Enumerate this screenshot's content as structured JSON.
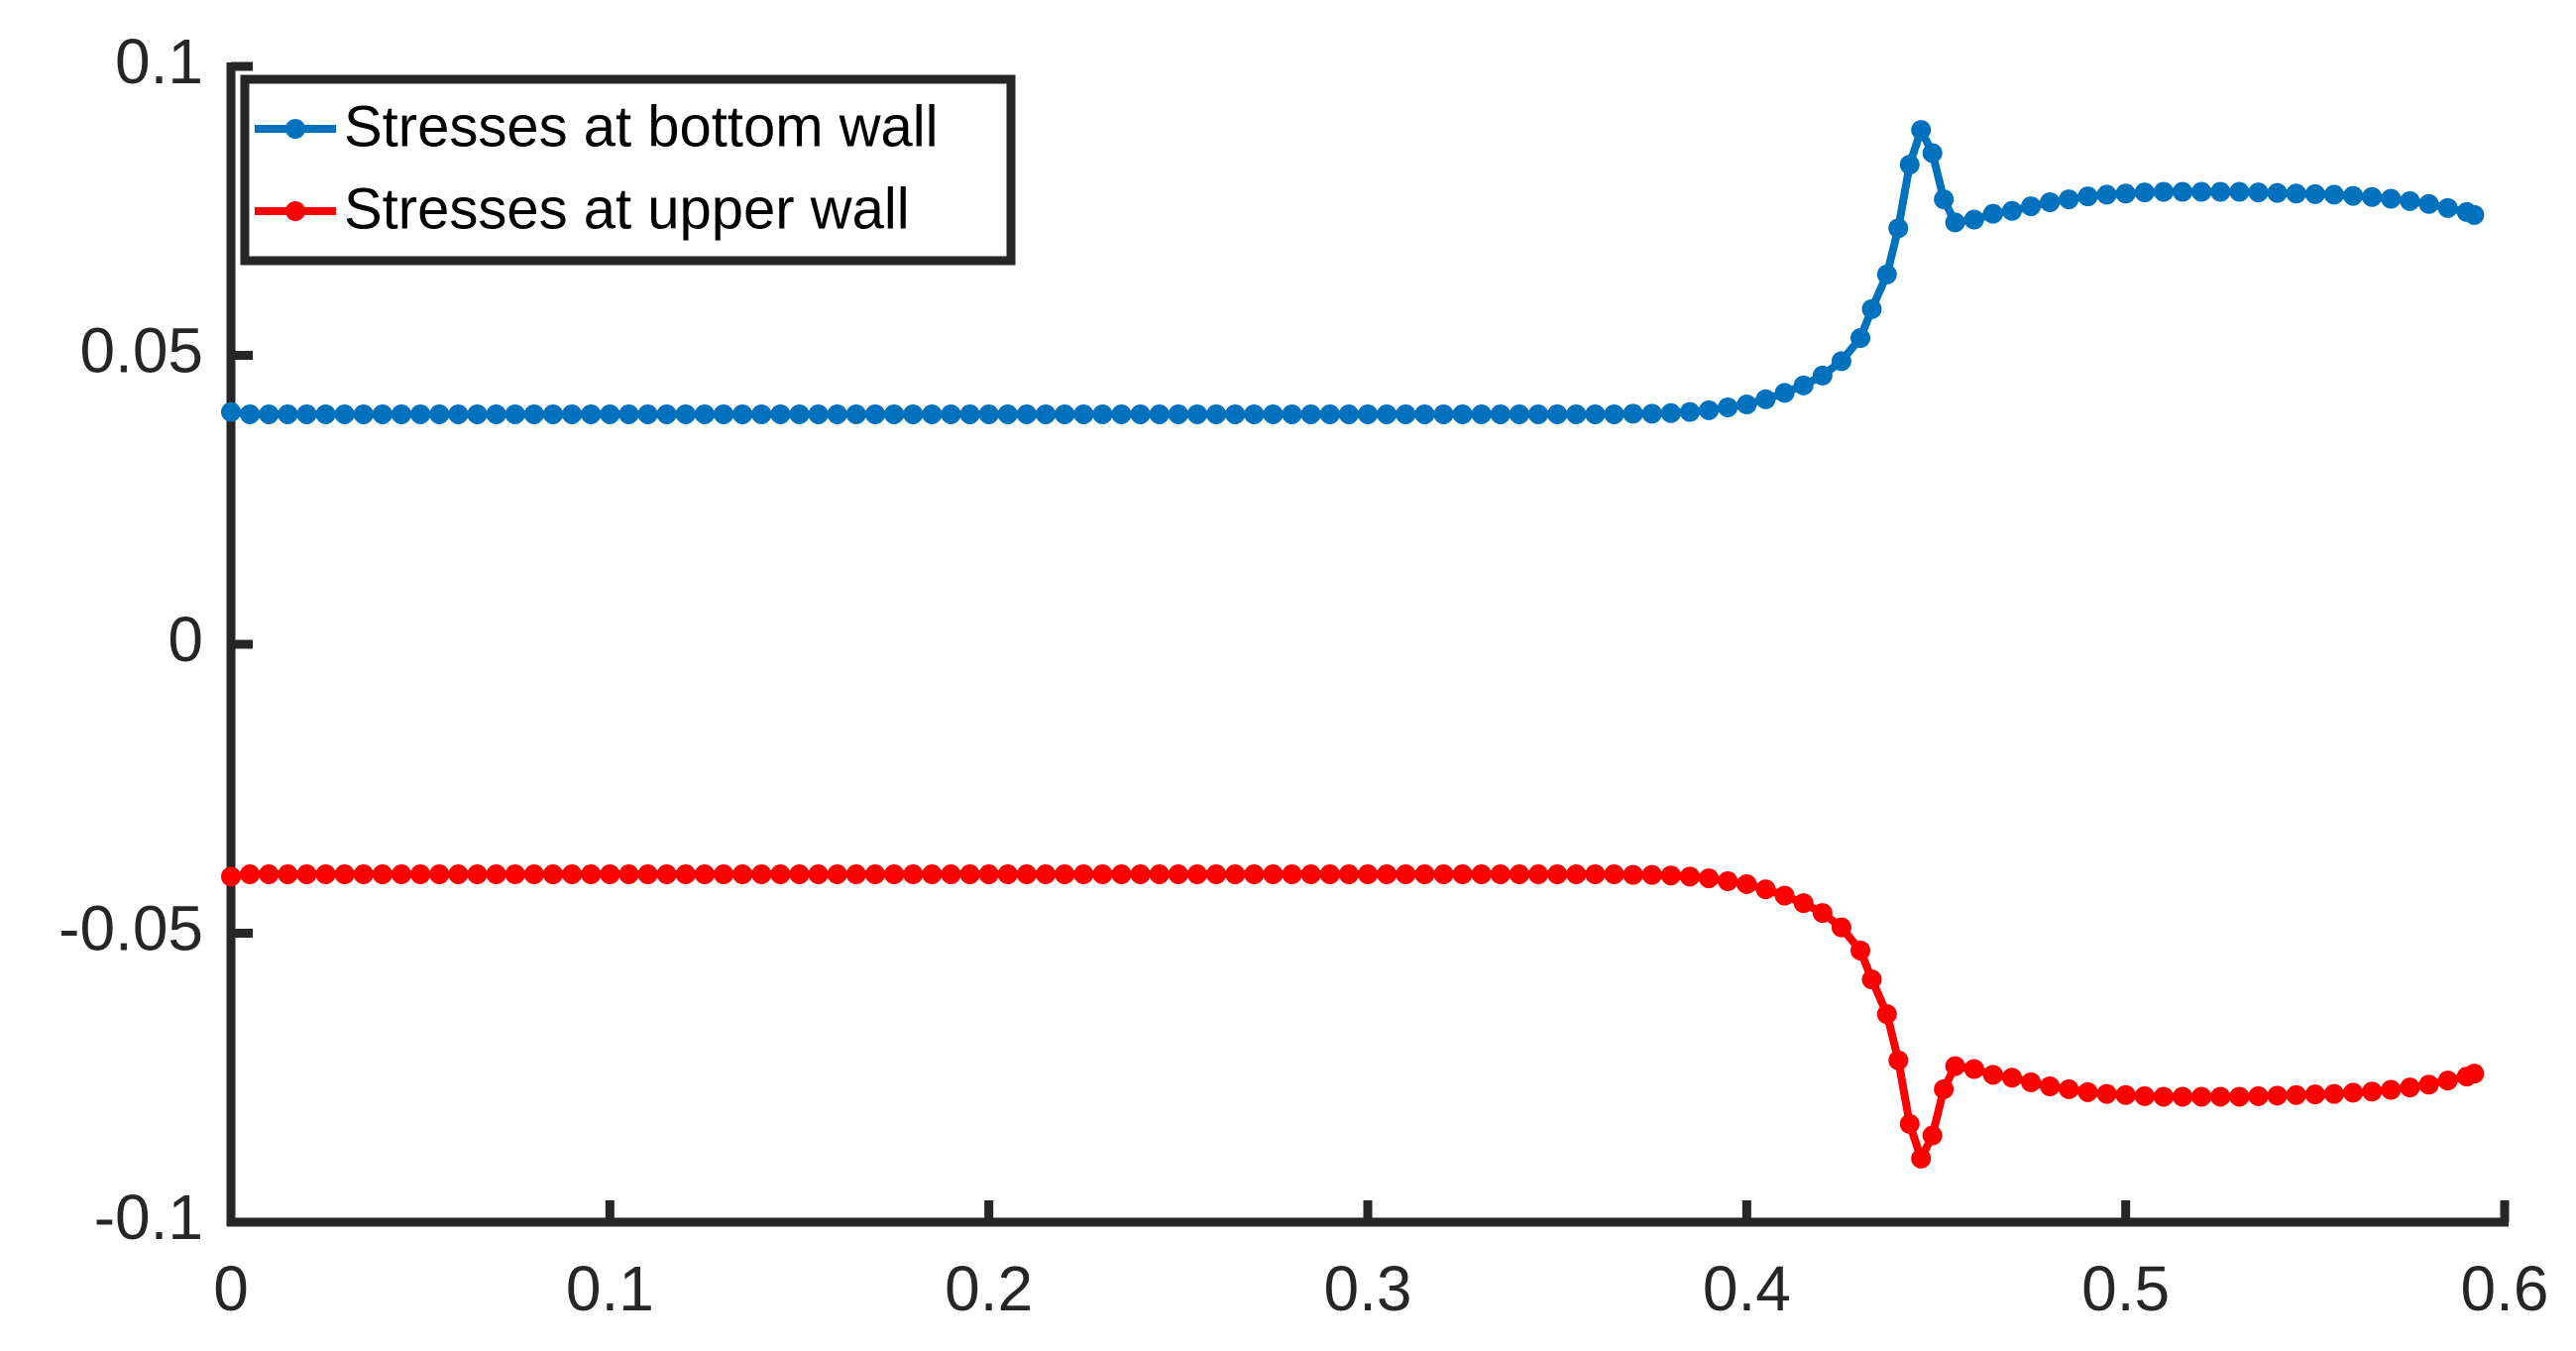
{
  "chart_data": {
    "type": "line",
    "x": [
      0,
      0.005,
      0.01,
      0.015,
      0.02,
      0.025,
      0.03,
      0.035,
      0.04,
      0.045,
      0.05,
      0.055,
      0.06,
      0.065,
      0.07,
      0.075,
      0.08,
      0.085,
      0.09,
      0.095,
      0.1,
      0.105,
      0.11,
      0.115,
      0.12,
      0.125,
      0.13,
      0.135,
      0.14,
      0.145,
      0.15,
      0.155,
      0.16,
      0.165,
      0.17,
      0.175,
      0.18,
      0.185,
      0.19,
      0.195,
      0.2,
      0.205,
      0.21,
      0.215,
      0.22,
      0.225,
      0.23,
      0.235,
      0.24,
      0.245,
      0.25,
      0.255,
      0.26,
      0.265,
      0.27,
      0.275,
      0.28,
      0.285,
      0.29,
      0.295,
      0.3,
      0.305,
      0.31,
      0.315,
      0.32,
      0.325,
      0.33,
      0.335,
      0.34,
      0.345,
      0.35,
      0.355,
      0.36,
      0.365,
      0.37,
      0.375,
      0.38,
      0.385,
      0.39,
      0.395,
      0.4,
      0.405,
      0.41,
      0.415,
      0.42,
      0.425,
      0.43,
      0.433,
      0.437,
      0.44,
      0.443,
      0.446,
      0.449,
      0.452,
      0.455,
      0.46,
      0.465,
      0.47,
      0.475,
      0.48,
      0.485,
      0.49,
      0.495,
      0.5,
      0.505,
      0.51,
      0.515,
      0.52,
      0.525,
      0.53,
      0.535,
      0.54,
      0.545,
      0.55,
      0.555,
      0.56,
      0.565,
      0.57,
      0.575,
      0.58,
      0.585,
      0.59,
      0.592
    ],
    "series": [
      {
        "name": "Stresses at bottom wall",
        "color": "#0072bd",
        "values": [
          0.0402,
          0.0398,
          0.0398,
          0.0398,
          0.0398,
          0.0398,
          0.0398,
          0.0398,
          0.0398,
          0.0398,
          0.0398,
          0.0398,
          0.0398,
          0.0398,
          0.0398,
          0.0398,
          0.0398,
          0.0398,
          0.0398,
          0.0398,
          0.0398,
          0.0398,
          0.0398,
          0.0398,
          0.0398,
          0.0398,
          0.0398,
          0.0398,
          0.0398,
          0.0398,
          0.0398,
          0.0398,
          0.0398,
          0.0398,
          0.0398,
          0.0398,
          0.0398,
          0.0398,
          0.0398,
          0.0398,
          0.0398,
          0.0398,
          0.0398,
          0.0398,
          0.0398,
          0.0398,
          0.0398,
          0.0398,
          0.0398,
          0.0398,
          0.0398,
          0.0398,
          0.0398,
          0.0398,
          0.0398,
          0.0398,
          0.0398,
          0.0398,
          0.0398,
          0.0398,
          0.0398,
          0.0398,
          0.0398,
          0.0398,
          0.0398,
          0.0398,
          0.0398,
          0.0398,
          0.0398,
          0.0398,
          0.0398,
          0.0398,
          0.0398,
          0.0398,
          0.0399,
          0.0399,
          0.04,
          0.0402,
          0.0405,
          0.041,
          0.0415,
          0.0424,
          0.0435,
          0.0448,
          0.0465,
          0.049,
          0.053,
          0.058,
          0.064,
          0.072,
          0.083,
          0.089,
          0.085,
          0.077,
          0.073,
          0.0735,
          0.0745,
          0.075,
          0.0758,
          0.0765,
          0.077,
          0.0775,
          0.0778,
          0.078,
          0.0782,
          0.0783,
          0.0783,
          0.0783,
          0.0783,
          0.0783,
          0.0782,
          0.0781,
          0.078,
          0.0779,
          0.0778,
          0.0776,
          0.0774,
          0.0771,
          0.0767,
          0.0762,
          0.0755,
          0.0748,
          0.0743
        ]
      },
      {
        "name": "Stresses at upper wall",
        "color": "#ff0000",
        "values": [
          -0.0402,
          -0.0398,
          -0.0398,
          -0.0398,
          -0.0398,
          -0.0398,
          -0.0398,
          -0.0398,
          -0.0398,
          -0.0398,
          -0.0398,
          -0.0398,
          -0.0398,
          -0.0398,
          -0.0398,
          -0.0398,
          -0.0398,
          -0.0398,
          -0.0398,
          -0.0398,
          -0.0398,
          -0.0398,
          -0.0398,
          -0.0398,
          -0.0398,
          -0.0398,
          -0.0398,
          -0.0398,
          -0.0398,
          -0.0398,
          -0.0398,
          -0.0398,
          -0.0398,
          -0.0398,
          -0.0398,
          -0.0398,
          -0.0398,
          -0.0398,
          -0.0398,
          -0.0398,
          -0.0398,
          -0.0398,
          -0.0398,
          -0.0398,
          -0.0398,
          -0.0398,
          -0.0398,
          -0.0398,
          -0.0398,
          -0.0398,
          -0.0398,
          -0.0398,
          -0.0398,
          -0.0398,
          -0.0398,
          -0.0398,
          -0.0398,
          -0.0398,
          -0.0398,
          -0.0398,
          -0.0398,
          -0.0398,
          -0.0398,
          -0.0398,
          -0.0398,
          -0.0398,
          -0.0398,
          -0.0398,
          -0.0398,
          -0.0398,
          -0.0398,
          -0.0398,
          -0.0398,
          -0.0398,
          -0.0399,
          -0.0399,
          -0.04,
          -0.0402,
          -0.0405,
          -0.041,
          -0.0415,
          -0.0424,
          -0.0435,
          -0.0448,
          -0.0465,
          -0.049,
          -0.053,
          -0.058,
          -0.064,
          -0.072,
          -0.083,
          -0.089,
          -0.085,
          -0.077,
          -0.073,
          -0.0735,
          -0.0745,
          -0.075,
          -0.0758,
          -0.0765,
          -0.077,
          -0.0775,
          -0.0778,
          -0.078,
          -0.0782,
          -0.0783,
          -0.0783,
          -0.0783,
          -0.0783,
          -0.0783,
          -0.0782,
          -0.0781,
          -0.078,
          -0.0779,
          -0.0778,
          -0.0776,
          -0.0774,
          -0.0771,
          -0.0767,
          -0.0762,
          -0.0755,
          -0.0748,
          -0.0743
        ]
      }
    ],
    "xlim": [
      0,
      0.6
    ],
    "xticks": [
      0,
      0.1,
      0.2,
      0.3,
      0.4,
      0.5,
      0.6
    ],
    "ylim": [
      -0.1,
      0.1
    ],
    "yticks": [
      -0.1,
      -0.05,
      0,
      0.05,
      0.1
    ],
    "grid": false,
    "legend": "upper left"
  }
}
